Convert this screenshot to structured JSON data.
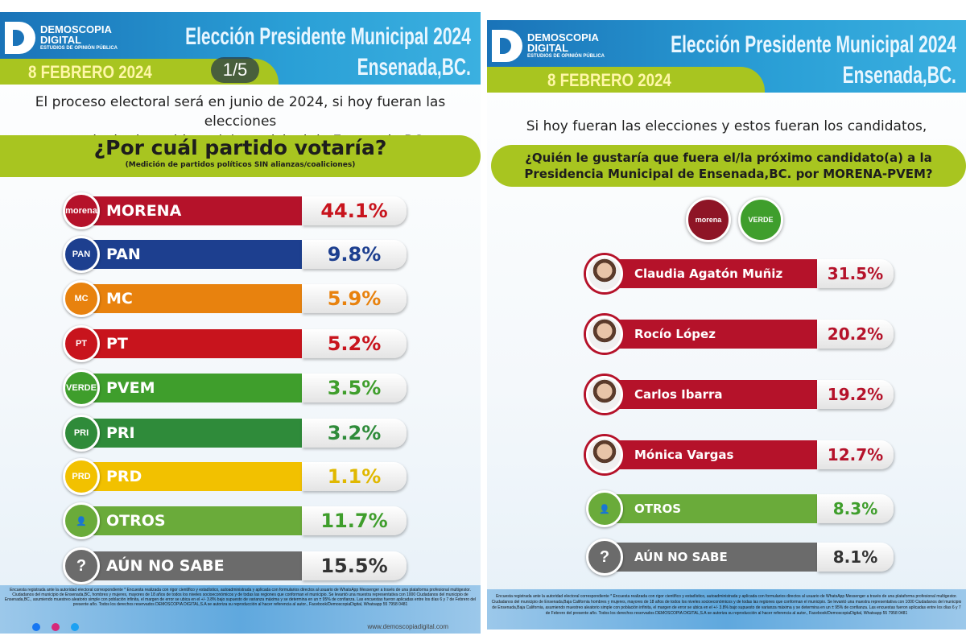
{
  "brand": {
    "name": "DEMOSCOPIA",
    "sub": "DIGITAL",
    "tag": "ESTUDIOS DE OPINIÓN PÚBLICA"
  },
  "colors": {
    "header_blue": "#1a73b8",
    "lime": "#a8c520",
    "morena": "#b5122a",
    "pan": "#1d3f8f",
    "mc": "#e8820e",
    "pt": "#c8141d",
    "pvem": "#3f9e2c",
    "pri": "#2f8b3a",
    "prd": "#f2c100",
    "otros": "#6aab3a",
    "no_sabe": "#6b6b6b"
  },
  "left": {
    "title_line1": "Elección Presidente Municipal 2024",
    "title_line2": "Ensenada,BC.",
    "date": "8 FEBRERO 2024",
    "pager": "1/5",
    "intro_line1": "El proceso electoral será en junio de 2024, si hoy fueran las elecciones",
    "intro_line2": "para elegir al presidente(a) municipal de Ensenada,BC.,",
    "question": "¿Por cuál partido votaría?",
    "question_note": "(Medición de partidos políticos SIN alianzas/coaliciones)",
    "footer": "Encuesta registrada ante la autoridad electoral correspondiente * Encuesta realizada con rigor científico y estadístico, autoadministrada y aplicada con formularios directos al usuario de WhatsApp Messenger a través de una plataforma profesional multigestor. Ciudadanos del municipio de Ensenada,BC, hombres y mujeres, mayores de 18 años de todos los niveles socioeconómicos y de todas las regiones que conforman el municipio. Se levantó una muestra representativa con 1000 Ciudadanos del municipio de Ensenada,BC., asumiendo muestreo aleatorio simple con población infinita, el margen de error se ubica en el +/- 3.8% bajo supuesto de varianza máxima y se determina en un ± 95% de confianza. Las encuestas fueron aplicadas entre los días 6 y 7 de Febrero del presente año. Todos los derechos reservados DEMOSCOPIA DIGITAL,S.A se autoriza su reproducción al hacer referencia al autor., Facebook/DemoscopiaDigital, Whatsapp 55 7958 0481",
    "website": "www.demoscopiadigital.com"
  },
  "right": {
    "title_line1": "Elección Presidente Municipal 2024",
    "title_line2": "Ensenada,BC.",
    "date": "8 FEBRERO 2024",
    "intro": "Si hoy fueran las elecciones y estos fueran los candidatos,",
    "question_line1": "¿Quién le gustaría que fuera el/la próximo candidato(a) a la",
    "question_line2": "Presidencia Municipal de Ensenada,BC. por MORENA-PVEM?",
    "logos": [
      "morena",
      "VERDE"
    ],
    "footer": "Encuesta registrada ante la autoridad electoral correspondiente * Encuesta realizada con rigor científico y estadístico, autoadministrada y aplicada con formularios directos al usuario de WhatsApp Messenger a través de una plataforma profesional multigestor. Ciudadanos del municipio de Ensenada,Baja California hombres y mujeres, mayores de 18 años de todos los niveles socioeconómicos y de todas las regiones que conforman el municipio. Se levantó una muestra representativa con 1000 Ciudadanos del municipio de Ensenada,Baja California, asumiendo muestreo aleatorio simple con población infinita, el margen de error se ubica en el +/- 3.8% bajo supuesto de varianza máxima y se determina en un ± 95% de confianza. Las encuestas fueron aplicadas entre los días 6 y 7 de Febrero del presente año. Todos los derechos reservados DEMOSCOPIA DIGITAL,S.A se autoriza su reproducción al hacer referencia al autor., Facebook/DemoscopiaDigital, Whatsapp 55 7958 0481"
  },
  "chart_data": [
    {
      "type": "bar",
      "title": "¿Por cuál partido votaría?",
      "categories": [
        "MORENA",
        "PAN",
        "MC",
        "PT",
        "PVEM",
        "PRI",
        "PRD",
        "OTROS",
        "AÚN NO SABE"
      ],
      "values": [
        44.1,
        9.8,
        5.9,
        5.2,
        3.5,
        3.2,
        1.1,
        11.7,
        15.5
      ],
      "labels": [
        "44.1%",
        "9.8%",
        "5.9%",
        "5.2%",
        "3.5%",
        "3.2%",
        "1.1%",
        "11.7%",
        "15.5%"
      ],
      "icons": [
        "morena",
        "PAN",
        "MC",
        "PT",
        "VERDE",
        "PRI",
        "PRD",
        "user-icon",
        "question-icon"
      ],
      "bar_colors": [
        "#b5122a",
        "#1d3f8f",
        "#e8820e",
        "#c8141d",
        "#3f9e2c",
        "#2f8b3a",
        "#f2c100",
        "#6aab3a",
        "#6b6b6b"
      ],
      "value_colors": [
        "#c8141d",
        "#1d3f8f",
        "#e8820e",
        "#c8141d",
        "#3f9e2c",
        "#2f8b3a",
        "#e0b800",
        "#3f9e2c",
        "#333333"
      ]
    },
    {
      "type": "bar",
      "title": "¿Quién le gustaría que fuera el/la próximo candidato(a) a la Presidencia Municipal de Ensenada,BC. por MORENA-PVEM?",
      "categories": [
        "Claudia Agatón Muñiz",
        "Rocío López",
        "Carlos Ibarra",
        "Mónica Vargas",
        "OTROS",
        "AÚN NO SABE"
      ],
      "values": [
        31.5,
        20.2,
        19.2,
        12.7,
        8.3,
        8.1
      ],
      "labels": [
        "31.5%",
        "20.2%",
        "19.2%",
        "12.7%",
        "8.3%",
        "8.1%"
      ],
      "icons": [
        "candidate-photo",
        "candidate-photo",
        "candidate-photo",
        "candidate-photo",
        "user-icon",
        "question-icon"
      ],
      "bar_colors": [
        "#b5122a",
        "#b5122a",
        "#b5122a",
        "#b5122a",
        "#6aab3a",
        "#6b6b6b"
      ],
      "value_colors": [
        "#b5122a",
        "#b5122a",
        "#b5122a",
        "#b5122a",
        "#3f9e2c",
        "#333333"
      ]
    }
  ]
}
